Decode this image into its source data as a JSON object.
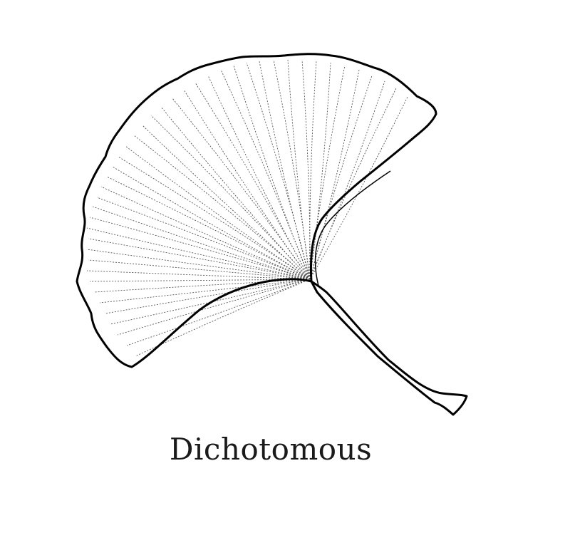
{
  "caption": "Dichotomous",
  "colors": {
    "outline": "#000000",
    "veins": "#555555",
    "background": "#ffffff"
  },
  "figure": {
    "subject": "ginkgo-leaf",
    "venation": "dichotomous"
  }
}
